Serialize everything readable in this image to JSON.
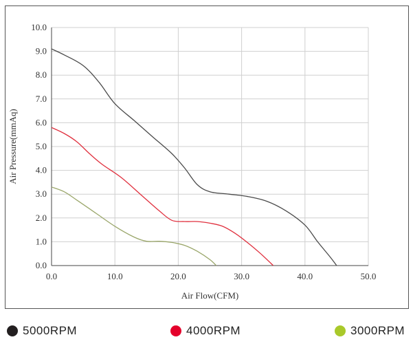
{
  "chart_data": {
    "type": "line",
    "title": "",
    "xlabel": "Air Flow(CFM)",
    "ylabel": "Air Pressure(mmAq)",
    "xlim": [
      0,
      50
    ],
    "ylim": [
      0,
      10
    ],
    "x_ticks": [
      "0.0",
      "10.0",
      "20.0",
      "30.0",
      "40.0",
      "50.0"
    ],
    "y_ticks": [
      "0.0",
      "1.0",
      "2.0",
      "3.0",
      "4.0",
      "5.0",
      "6.0",
      "7.0",
      "8.0",
      "9.0",
      "10.0"
    ],
    "grid": true,
    "legend_position": "bottom",
    "series": [
      {
        "name": "5000RPM",
        "color": "#4a4a4a",
        "legend_color": "#231f20",
        "points": [
          [
            0,
            9.1
          ],
          [
            2,
            8.85
          ],
          [
            5,
            8.4
          ],
          [
            7.5,
            7.7
          ],
          [
            10,
            6.8
          ],
          [
            13,
            6.1
          ],
          [
            16,
            5.4
          ],
          [
            19,
            4.7
          ],
          [
            21,
            4.1
          ],
          [
            23,
            3.4
          ],
          [
            25,
            3.1
          ],
          [
            28,
            3.0
          ],
          [
            31,
            2.9
          ],
          [
            34,
            2.7
          ],
          [
            37,
            2.3
          ],
          [
            40,
            1.7
          ],
          [
            42,
            1.0
          ],
          [
            44,
            0.35
          ],
          [
            45,
            0
          ]
        ]
      },
      {
        "name": "4000RPM",
        "color": "#e0303e",
        "legend_color": "#e4002b",
        "points": [
          [
            0,
            5.8
          ],
          [
            2,
            5.55
          ],
          [
            4,
            5.2
          ],
          [
            6,
            4.7
          ],
          [
            8,
            4.25
          ],
          [
            11,
            3.7
          ],
          [
            14,
            3.0
          ],
          [
            17,
            2.3
          ],
          [
            19,
            1.9
          ],
          [
            21,
            1.85
          ],
          [
            23,
            1.85
          ],
          [
            25,
            1.78
          ],
          [
            27,
            1.65
          ],
          [
            29,
            1.35
          ],
          [
            31,
            0.95
          ],
          [
            33,
            0.5
          ],
          [
            35,
            0
          ]
        ]
      },
      {
        "name": "3000RPM",
        "color": "#9aa66a",
        "legend_color": "#a9c92a",
        "points": [
          [
            0,
            3.3
          ],
          [
            2,
            3.1
          ],
          [
            4,
            2.75
          ],
          [
            7,
            2.2
          ],
          [
            10,
            1.65
          ],
          [
            13,
            1.2
          ],
          [
            15,
            1.02
          ],
          [
            17,
            1.02
          ],
          [
            19,
            0.97
          ],
          [
            21,
            0.85
          ],
          [
            23,
            0.6
          ],
          [
            25,
            0.25
          ],
          [
            26,
            0
          ]
        ]
      }
    ]
  }
}
